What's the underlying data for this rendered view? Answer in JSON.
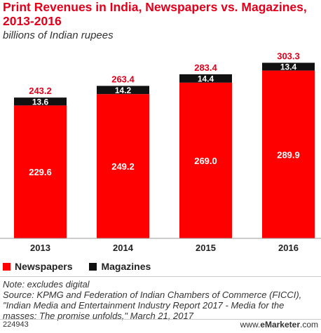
{
  "header": {
    "title": "Print Revenues in India, Newspapers vs. Magazines, 2013-2016",
    "subtitle": "billions of Indian rupees"
  },
  "chart_data": {
    "type": "bar",
    "stacked": true,
    "title": "Print Revenues in India, Newspapers vs. Magazines, 2013-2016",
    "subtitle": "billions of Indian rupees",
    "categories": [
      "2013",
      "2014",
      "2015",
      "2016"
    ],
    "series": [
      {
        "name": "Newspapers",
        "values": [
          229.6,
          249.2,
          269.0,
          289.9
        ],
        "color": "#ff0000"
      },
      {
        "name": "Magazines",
        "values": [
          13.6,
          14.2,
          14.4,
          13.4
        ],
        "color": "#111111"
      }
    ],
    "totals": [
      243.2,
      263.4,
      283.4,
      303.3
    ],
    "total_color": "#e1001b",
    "ylim": [
      0,
      310
    ],
    "grid": false,
    "legend_position": "bottom-left"
  },
  "legend": [
    {
      "label": "Newspapers",
      "color": "#ff0000"
    },
    {
      "label": "Magazines",
      "color": "#111111"
    }
  ],
  "notes": [
    "Note: excludes digital",
    "Source: KPMG and Federation of Indian Chambers of Commerce (FICCI),",
    "\"Indian Media and Entertainment Industry Report 2017 - Media for the",
    "masses: The promise unfolds,\" March 21, 2017"
  ],
  "footer": {
    "chart_id": "224943",
    "brand_prefix": "www.",
    "brand_name": "eMarketer",
    "brand_suffix": ".com"
  }
}
